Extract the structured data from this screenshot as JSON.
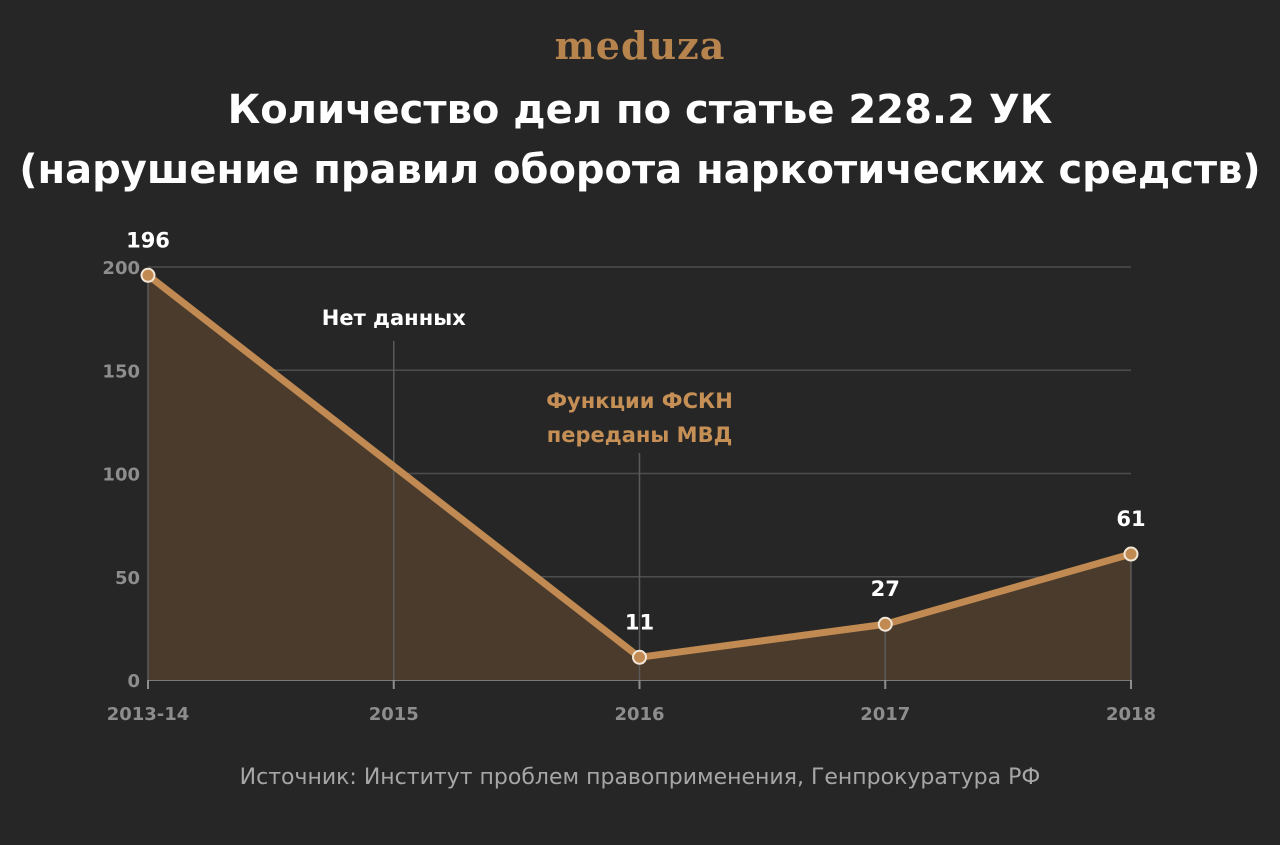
{
  "brand": {
    "logo_text": "meduza"
  },
  "chart_data": {
    "type": "area",
    "title_lines": [
      "Количество дел по статье 228.2 УК",
      "(нарушение правил оборота наркотических средств)"
    ],
    "source": "Источник: Институт проблем правоприменения, Генпрокуратура РФ",
    "categories": [
      "2013-14",
      "2015",
      "2016",
      "2017",
      "2018"
    ],
    "series": [
      {
        "values": [
          196,
          null,
          11,
          27,
          61
        ]
      }
    ],
    "y_ticks": [
      0,
      50,
      100,
      150,
      200
    ],
    "ylim": [
      0,
      200
    ],
    "grid": "horizontal",
    "annotations": [
      {
        "category": "2015",
        "text": "Нет данных",
        "style": "white"
      },
      {
        "category": "2016",
        "text_lines": [
          "Функции ФСКН",
          "переданы МВД"
        ],
        "style": "gold"
      }
    ],
    "colors": {
      "background": "#262626",
      "line": "#c08a52",
      "area": "#4a3b2c",
      "grid": "#4d4d4d",
      "tick_text": "#8d8d8d",
      "gold_text": "#c58f55",
      "marker_stroke": "#f2e6d6"
    }
  }
}
